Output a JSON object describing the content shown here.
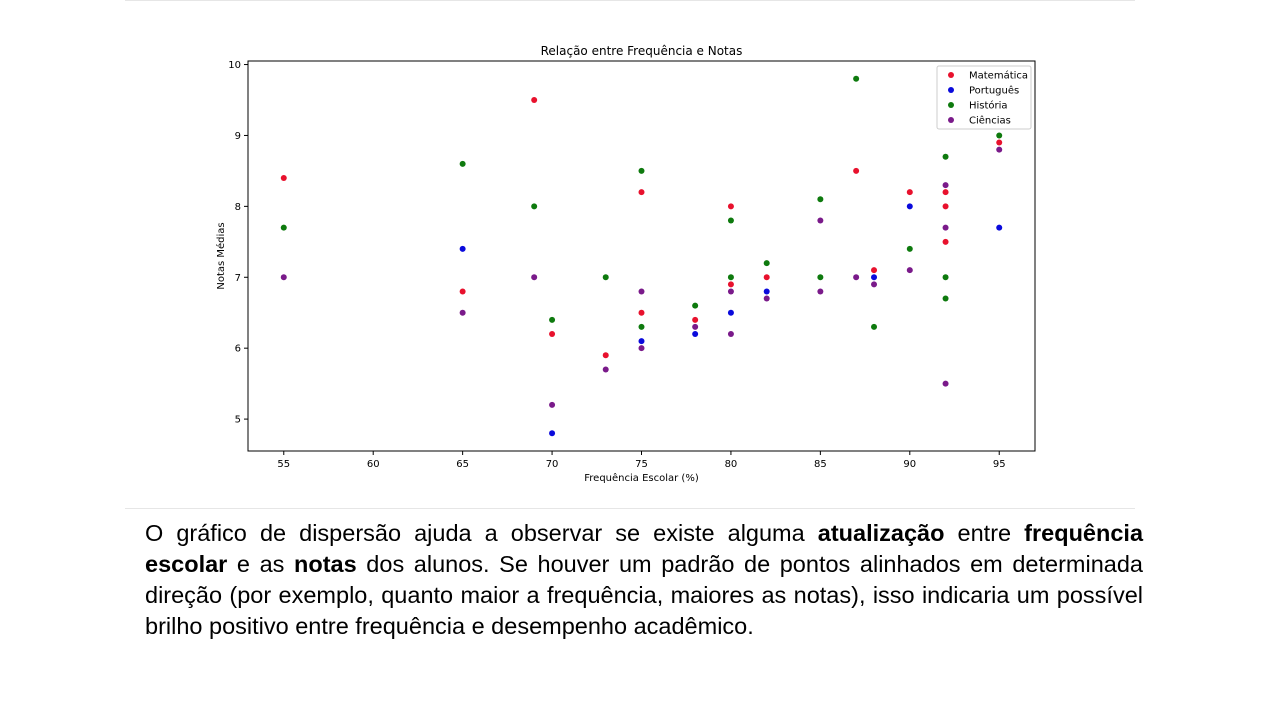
{
  "chart_data": {
    "type": "scatter",
    "title": "Relação entre Frequência e Notas",
    "xlabel": "Frequência Escolar (%)",
    "ylabel": "Notas Médias",
    "xlim": [
      53,
      97
    ],
    "ylim": [
      4.55,
      10.05
    ],
    "xticks": [
      55,
      60,
      65,
      70,
      75,
      80,
      85,
      90,
      95
    ],
    "yticks": [
      5,
      6,
      7,
      8,
      9,
      10
    ],
    "grid": false,
    "legend_position": "top-right",
    "series": [
      {
        "name": "Matemática",
        "color": "#e8112d",
        "x": [
          55,
          65,
          69,
          70,
          73,
          75,
          75,
          78,
          80,
          80,
          82,
          87,
          88,
          90,
          92,
          92,
          92,
          95
        ],
        "y": [
          8.4,
          6.8,
          9.5,
          6.2,
          5.9,
          8.2,
          6.5,
          6.4,
          8.0,
          6.9,
          7.0,
          8.5,
          7.1,
          8.2,
          8.2,
          8.0,
          7.5,
          8.9
        ]
      },
      {
        "name": "Português",
        "color": "#0a0adc",
        "x": [
          65,
          70,
          75,
          78,
          80,
          82,
          88,
          90,
          95
        ],
        "y": [
          7.4,
          4.8,
          6.1,
          6.2,
          6.5,
          6.8,
          7.0,
          8.0,
          7.7
        ]
      },
      {
        "name": "História",
        "color": "#0e7a0e",
        "x": [
          55,
          65,
          69,
          70,
          73,
          75,
          75,
          78,
          80,
          80,
          82,
          85,
          85,
          87,
          88,
          90,
          92,
          92,
          92,
          95
        ],
        "y": [
          7.7,
          8.6,
          8.0,
          6.4,
          7.0,
          8.5,
          6.3,
          6.6,
          7.8,
          7.0,
          7.2,
          8.1,
          7.0,
          9.8,
          6.3,
          7.4,
          8.7,
          7.0,
          6.7,
          9.0
        ]
      },
      {
        "name": "Ciências",
        "color": "#7a1a8a",
        "x": [
          55,
          65,
          69,
          70,
          73,
          75,
          75,
          78,
          80,
          80,
          82,
          85,
          85,
          87,
          88,
          90,
          92,
          92,
          92,
          95
        ],
        "y": [
          7.0,
          6.5,
          7.0,
          5.2,
          5.7,
          6.8,
          6.0,
          6.3,
          6.8,
          6.2,
          6.7,
          7.8,
          6.8,
          7.0,
          6.9,
          7.1,
          8.3,
          7.7,
          5.5,
          8.8
        ]
      }
    ]
  },
  "caption": {
    "t1": "O gráfico de dispersão ajuda a observar se existe alguma ",
    "b1": "atualização",
    "t2": " entre ",
    "b2": "frequência escolar",
    "t3": " e as ",
    "b3": "notas",
    "t4": " dos alunos. Se houver um padrão de pontos alinhados em determinada direção (por exemplo, quanto maior a frequência, maiores as notas), isso indicaria um possível brilho positivo entre frequência e desempenho acadêmico."
  }
}
